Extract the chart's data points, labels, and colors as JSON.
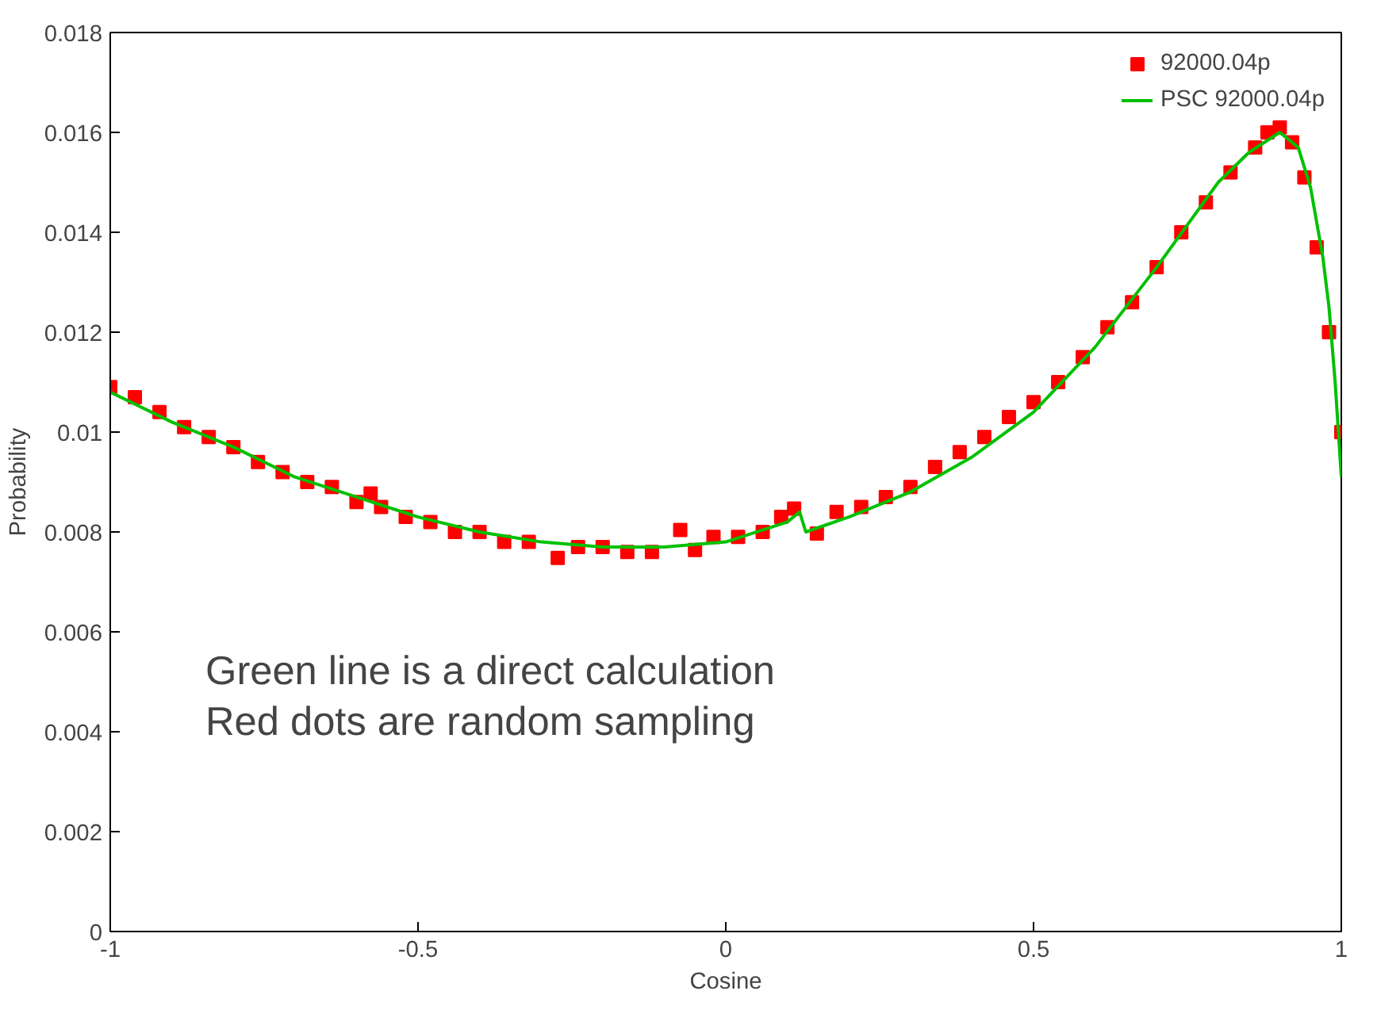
{
  "chart_data": {
    "type": "line",
    "xlabel": "Cosine",
    "ylabel": "Probability",
    "xlim": [
      -1,
      1
    ],
    "ylim": [
      0,
      0.018
    ],
    "xticks": [
      -1,
      -0.5,
      0,
      0.5,
      1
    ],
    "yticks": [
      0,
      0.002,
      0.004,
      0.006,
      0.008,
      0.01,
      0.012,
      0.014,
      0.016,
      0.018
    ],
    "grid": false,
    "legend": "top right",
    "annotations": [
      "Green line is a direct calculation",
      "Red dots are random sampling"
    ],
    "series": [
      {
        "name": "92000.04p",
        "type": "scatter",
        "marker": "square",
        "color": "#ff0000",
        "x": [
          -1,
          -0.96,
          -0.92,
          -0.88,
          -0.84,
          -0.8,
          -0.76,
          -0.72,
          -0.68,
          -0.64,
          -0.6,
          -0.577,
          -0.56,
          -0.52,
          -0.48,
          -0.44,
          -0.4,
          -0.36,
          -0.32,
          -0.273,
          -0.24,
          -0.2,
          -0.16,
          -0.12,
          -0.074,
          -0.05,
          -0.02,
          0.02,
          0.06,
          0.09,
          0.111,
          0.148,
          0.18,
          0.22,
          0.26,
          0.3,
          0.34,
          0.38,
          0.42,
          0.46,
          0.5,
          0.54,
          0.58,
          0.62,
          0.66,
          0.7,
          0.74,
          0.78,
          0.82,
          0.86,
          0.88,
          0.9,
          0.92,
          0.94,
          0.96,
          0.98,
          1
        ],
        "values": [
          0.0109,
          0.0107,
          0.0104,
          0.0101,
          0.0099,
          0.0097,
          0.0094,
          0.0092,
          0.009,
          0.0089,
          0.0086,
          0.00877,
          0.0085,
          0.0083,
          0.0082,
          0.008,
          0.008,
          0.0078,
          0.0078,
          0.00748,
          0.0077,
          0.0077,
          0.0076,
          0.0076,
          0.00804,
          0.00764,
          0.0079,
          0.0079,
          0.008,
          0.0083,
          0.00847,
          0.00797,
          0.0084,
          0.0085,
          0.0087,
          0.0089,
          0.0093,
          0.0096,
          0.0099,
          0.0103,
          0.0106,
          0.011,
          0.0115,
          0.0121,
          0.0126,
          0.0133,
          0.014,
          0.0146,
          0.0152,
          0.0157,
          0.016,
          0.0161,
          0.0158,
          0.0151,
          0.0137,
          0.012,
          0.01
        ]
      },
      {
        "name": "PSC 92000.04p",
        "color": "#00c000",
        "x": [
          -1,
          -0.9,
          -0.8,
          -0.7,
          -0.6,
          -0.5,
          -0.4,
          -0.3,
          -0.2,
          -0.1,
          0,
          0.1,
          0.12,
          0.13,
          0.2,
          0.3,
          0.4,
          0.5,
          0.6,
          0.7,
          0.8,
          0.85,
          0.9,
          0.93,
          0.95,
          0.97,
          0.98,
          0.99,
          1
        ],
        "values": [
          0.0108,
          0.0102,
          0.0097,
          0.0091,
          0.0087,
          0.0083,
          0.008,
          0.0078,
          0.0077,
          0.0077,
          0.0078,
          0.0082,
          0.0084,
          0.008,
          0.0083,
          0.0088,
          0.0095,
          0.0104,
          0.0117,
          0.0133,
          0.015,
          0.0156,
          0.016,
          0.0157,
          0.0149,
          0.0135,
          0.0125,
          0.011,
          0.0091
        ]
      }
    ]
  }
}
